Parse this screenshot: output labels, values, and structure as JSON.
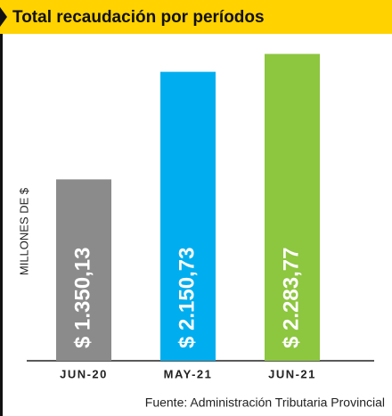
{
  "chart_data": {
    "type": "bar",
    "title": "Total recaudación por períodos",
    "y_label": "MILLONES DE $",
    "source": "Fuente: Administración Tributaria Provincial",
    "categories": [
      "JUN-20",
      "MAY-21",
      "JUN-21"
    ],
    "values": [
      1350.13,
      2150.73,
      2283.77
    ],
    "value_labels": [
      "$ 1.350,13",
      "$ 2.150,73",
      "$ 2.283,77"
    ],
    "colors": [
      "#8b8b8b",
      "#00aeef",
      "#8dc63f"
    ],
    "ylim": [
      0,
      2420
    ]
  }
}
